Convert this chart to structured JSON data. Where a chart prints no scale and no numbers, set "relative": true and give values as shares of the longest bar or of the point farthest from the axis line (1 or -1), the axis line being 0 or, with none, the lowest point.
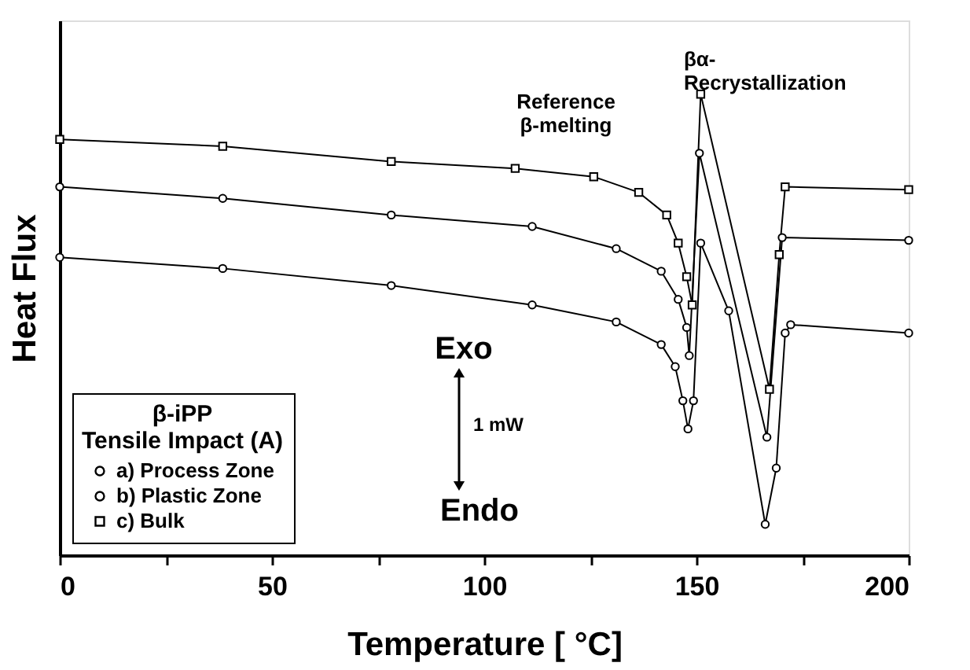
{
  "chart_data": {
    "type": "line",
    "relative": true,
    "xlabel": "Temperature [ °C]",
    "ylabel": "Heat Flux",
    "xlim": [
      0,
      200
    ],
    "xticks": [
      0,
      {
        "value": 25,
        "label": null
      },
      50,
      {
        "value": 75,
        "label": null
      },
      100,
      {
        "value": 125,
        "label": null
      },
      150,
      {
        "value": 175,
        "label": null
      },
      200
    ],
    "legend": "bottom left",
    "legend_title": "β-iPP\nTensile Impact (A)",
    "grid": false,
    "series": [
      {
        "name": "a) Process Zone",
        "color": "#000000",
        "marker": "circle",
        "x": [
          0,
          38.4,
          78.1,
          111.3,
          131.1,
          141.7,
          145.0,
          146.8,
          148.0,
          149.3,
          151.0,
          157.6,
          166.2,
          168.8,
          170.9,
          172.2,
          200
        ],
        "values": [
          0.646,
          0.622,
          0.585,
          0.543,
          0.506,
          0.457,
          0.409,
          0.335,
          0.274,
          0.335,
          0.677,
          0.53,
          0.067,
          0.189,
          0.482,
          0.5,
          0.482
        ]
      },
      {
        "name": "b) Plastic Zone",
        "color": "#000000",
        "marker": "circle",
        "x": [
          0,
          38.4,
          78.1,
          111.3,
          131.1,
          141.7,
          145.7,
          147.7,
          148.3,
          150.7,
          166.6,
          170.2,
          200
        ],
        "values": [
          0.799,
          0.774,
          0.738,
          0.713,
          0.665,
          0.616,
          0.555,
          0.494,
          0.433,
          0.872,
          0.256,
          0.689,
          0.683
        ]
      },
      {
        "name": "c) Bulk",
        "color": "#000000",
        "marker": "square",
        "x": [
          0,
          38.4,
          78.1,
          107.3,
          125.8,
          136.4,
          143.0,
          145.7,
          147.7,
          149.0,
          151.0,
          167.2,
          169.5,
          170.9,
          200
        ],
        "values": [
          0.902,
          0.887,
          0.854,
          0.839,
          0.821,
          0.787,
          0.738,
          0.677,
          0.604,
          0.543,
          1.0,
          0.36,
          0.652,
          0.799,
          0.793
        ]
      }
    ],
    "annotations": [
      "Reference\nβ-melting",
      "βα-\nRecrystallization",
      "Exo",
      "1 mW",
      "Endo"
    ]
  }
}
